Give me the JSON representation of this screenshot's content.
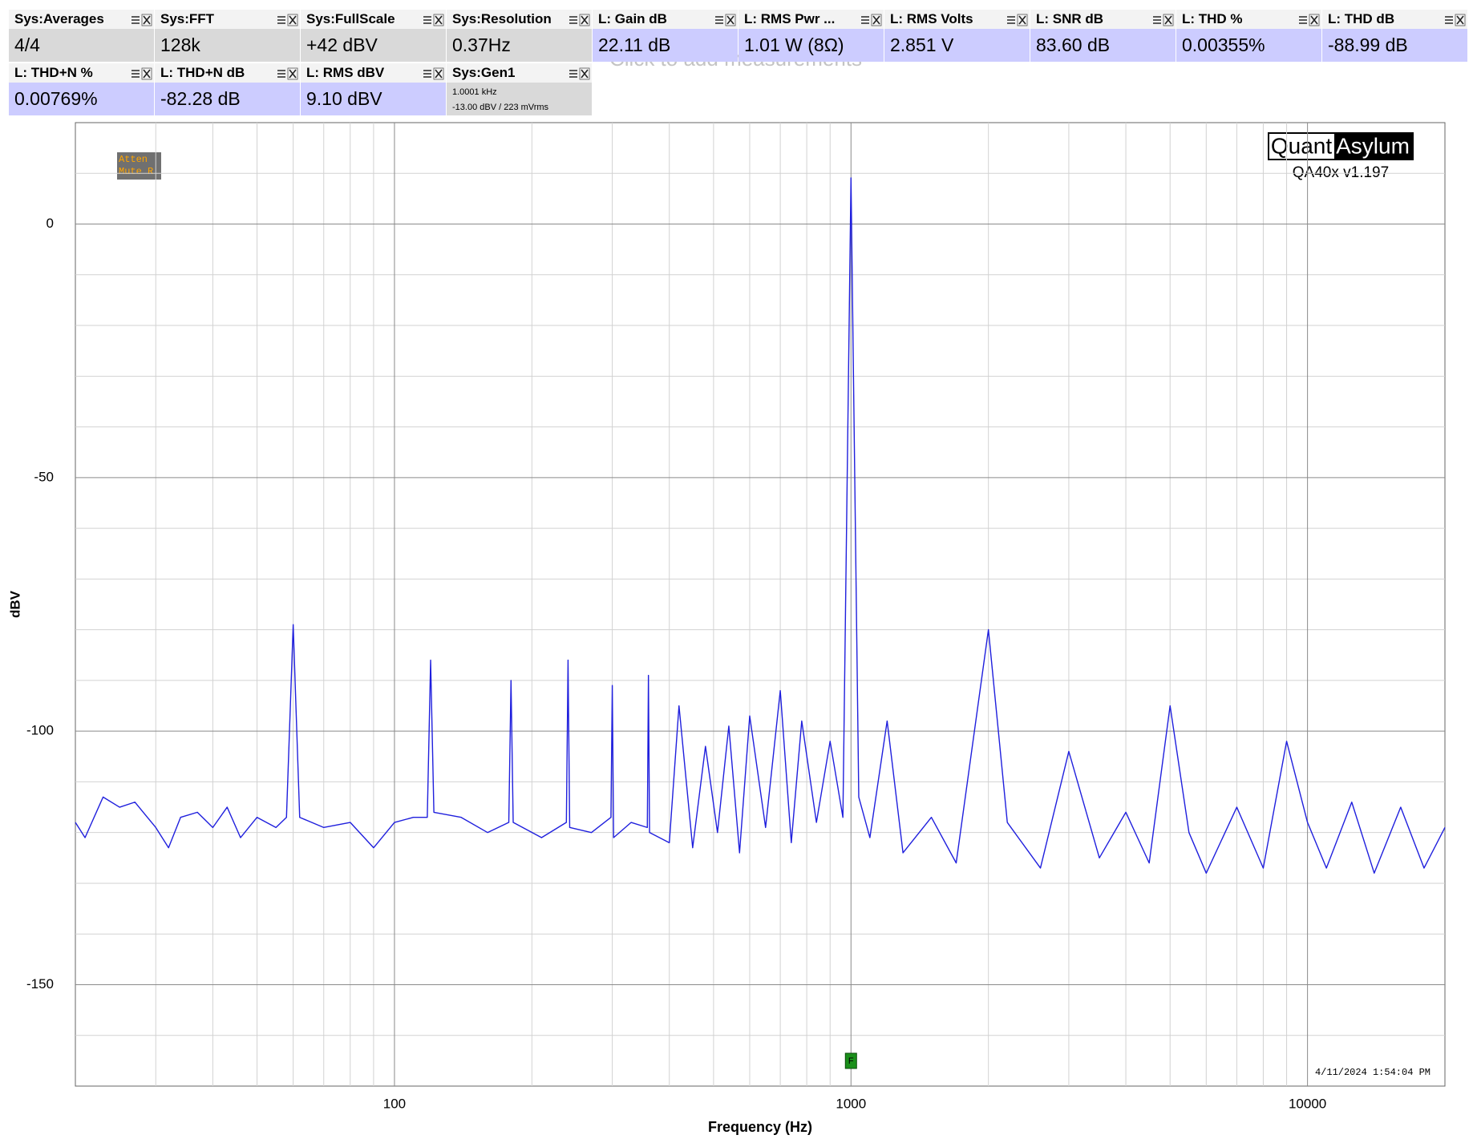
{
  "measurements": [
    {
      "label": "Sys:Averages",
      "value": "4/4",
      "color": "#d9d9d9"
    },
    {
      "label": "Sys:FFT",
      "value": "128k",
      "color": "#d9d9d9"
    },
    {
      "label": "Sys:FullScale",
      "value": "+42 dBV",
      "color": "#d9d9d9"
    },
    {
      "label": "Sys:Resolution",
      "value": "0.37Hz",
      "color": "#d9d9d9"
    },
    {
      "label": "L: Gain dB",
      "value": "22.11 dB",
      "color": "#ccccff"
    },
    {
      "label": "L: RMS Pwr ...",
      "value": "1.01 W (8Ω)",
      "color": "#ccccff"
    },
    {
      "label": "L: RMS Volts",
      "value": "2.851 V",
      "color": "#ccccff"
    },
    {
      "label": "L: SNR dB",
      "value": "83.60 dB",
      "color": "#ccccff"
    },
    {
      "label": "L: THD %",
      "value": "0.00355%",
      "color": "#ccccff"
    },
    {
      "label": "L: THD dB",
      "value": "-88.99 dB",
      "color": "#ccccff"
    },
    {
      "label": "L: THD+N %",
      "value": "0.00769%",
      "color": "#ccccff"
    },
    {
      "label": "L: THD+N dB",
      "value": "-82.28 dB",
      "color": "#ccccff"
    },
    {
      "label": "L: RMS dBV",
      "value": "9.10 dBV",
      "color": "#ccccff"
    },
    {
      "label": "Sys:Gen1",
      "lines": [
        "1.0001 kHz",
        "-13.00 dBV  / 223 mVrms"
      ],
      "color": "#d9d9d9"
    }
  ],
  "placeholder": "Click to add measurements",
  "overlay": {
    "atten": "Atten",
    "mute": "Mute R",
    "logo_left": "Quant",
    "logo_right": "Asylum",
    "version": "QA40x v1.197",
    "timestamp": "4/11/2024 1:54:04 PM"
  },
  "chart_data": {
    "type": "line",
    "xlabel": "Frequency (Hz)",
    "ylabel": "dBV",
    "color": "#1f1fdd",
    "xscale": "log",
    "xlim": [
      20,
      20000
    ],
    "xticks": [
      100,
      1000,
      10000
    ],
    "minor_xticks": [
      30,
      40,
      50,
      60,
      70,
      80,
      90,
      200,
      300,
      400,
      500,
      600,
      700,
      800,
      900,
      2000,
      3000,
      4000,
      5000,
      6000,
      7000,
      8000,
      9000
    ],
    "ylim": [
      -170,
      20
    ],
    "yticks": [
      -150,
      -100,
      -50,
      0
    ],
    "minor_yticks": [
      -160,
      -140,
      -130,
      -120,
      -110,
      -90,
      -80,
      -70,
      -60,
      -40,
      -30,
      -20,
      -10,
      10
    ],
    "grid": true,
    "marker": {
      "label": "F",
      "x": 1000
    },
    "x": [
      20,
      21,
      23,
      25,
      27,
      30,
      32,
      34,
      37,
      40,
      43,
      46,
      50,
      55,
      58,
      60,
      62,
      70,
      80,
      90,
      100,
      110,
      118,
      120,
      122,
      140,
      160,
      178,
      180,
      182,
      210,
      238,
      240,
      242,
      270,
      298,
      300,
      302,
      330,
      358,
      360,
      362,
      400,
      420,
      450,
      480,
      510,
      540,
      570,
      600,
      650,
      700,
      740,
      780,
      840,
      900,
      960,
      1000,
      1040,
      1100,
      1200,
      1300,
      1500,
      1700,
      2000,
      2200,
      2600,
      3000,
      3500,
      4000,
      4500,
      5000,
      5500,
      6000,
      7000,
      8000,
      9000,
      10000,
      11000,
      12500,
      14000,
      16000,
      18000,
      20000
    ],
    "values": [
      -118,
      -121,
      -113,
      -115,
      -114,
      -119,
      -123,
      -117,
      -116,
      -119,
      -115,
      -121,
      -117,
      -119,
      -117,
      -79,
      -117,
      -119,
      -118,
      -123,
      -118,
      -117,
      -117,
      -86,
      -116,
      -117,
      -120,
      -118,
      -90,
      -118,
      -121,
      -118,
      -86,
      -119,
      -120,
      -117,
      -91,
      -121,
      -118,
      -119,
      -89,
      -120,
      -122,
      -95,
      -123,
      -103,
      -120,
      -99,
      -124,
      -97,
      -119,
      -92,
      -122,
      -98,
      -118,
      -102,
      -117,
      9.1,
      -113,
      -121,
      -98,
      -124,
      -117,
      -126,
      -80,
      -118,
      -127,
      -104,
      -125,
      -116,
      -126,
      -95,
      -120,
      -128,
      -115,
      -127,
      -102,
      -118,
      -127,
      -114,
      -128,
      -115,
      -127,
      -119
    ]
  }
}
